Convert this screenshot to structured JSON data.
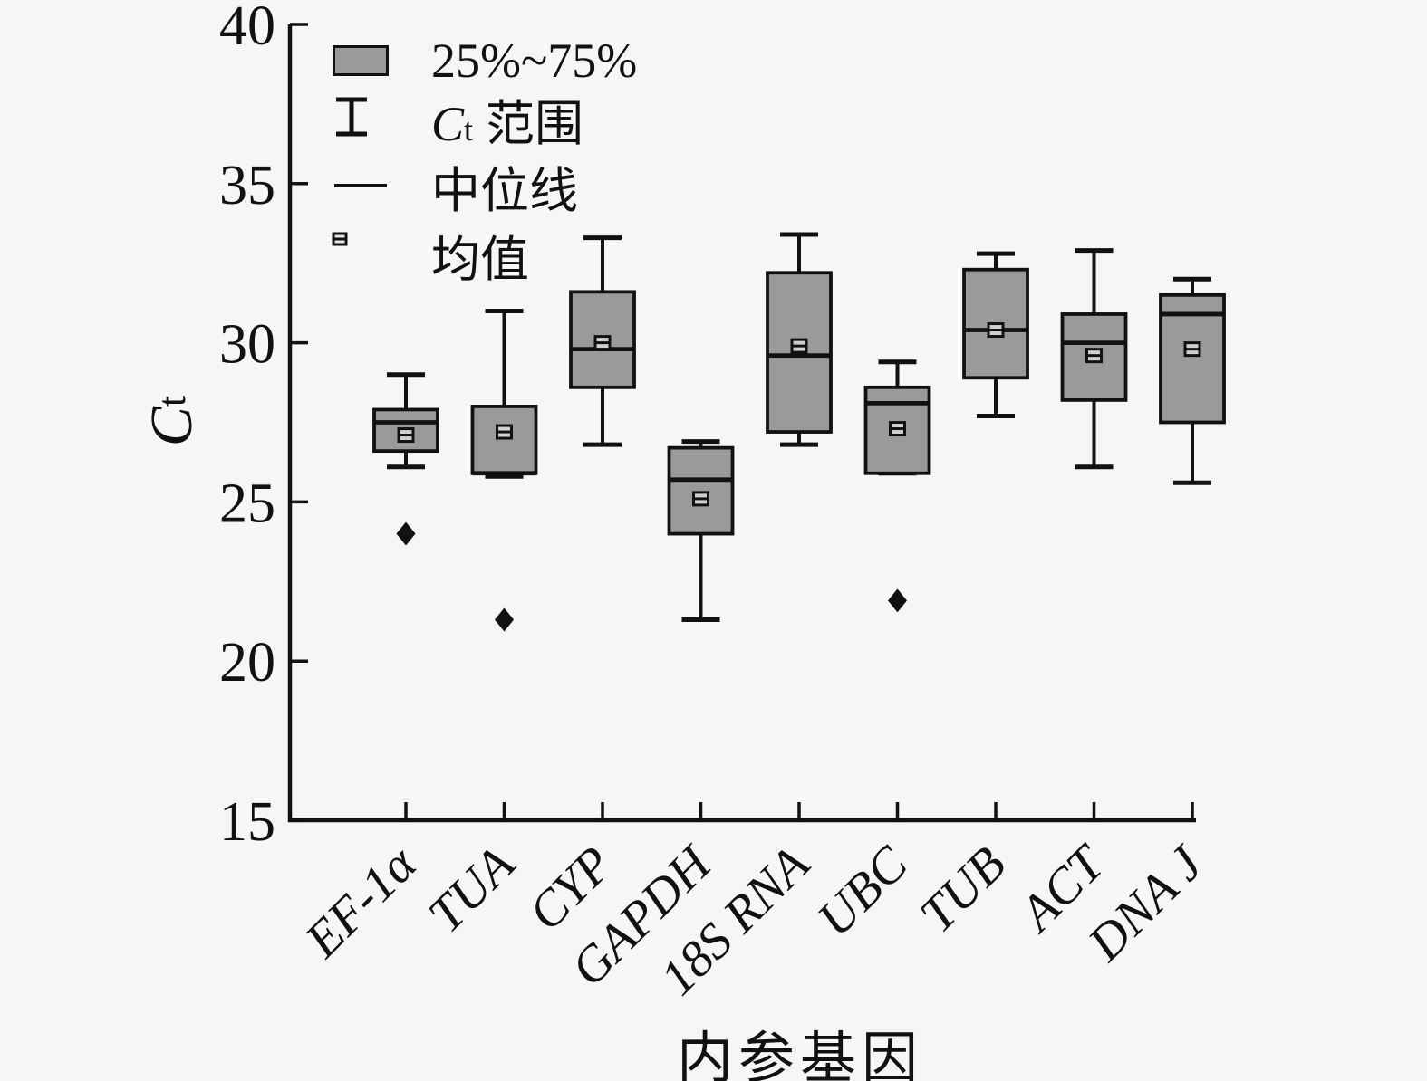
{
  "chart_data": {
    "type": "box",
    "title": "",
    "xlabel": "内参基因",
    "ylabel_main": "C",
    "ylabel_sub": "t",
    "ylim": [
      15,
      40
    ],
    "yticks": [
      40,
      35,
      30,
      25,
      20,
      15
    ],
    "grid": false,
    "legend_position": "top-left-inside",
    "categories": [
      "EF-1α",
      "TUA",
      "CYP",
      "GAPDH",
      "18S RNA",
      "UBC",
      "TUB",
      "ACT",
      "DNA J"
    ],
    "boxes": [
      {
        "gene": "EF-1α",
        "whisker_low": 26.1,
        "q1": 26.6,
        "median": 27.5,
        "q3": 27.9,
        "whisker_high": 29.0,
        "mean": 27.1,
        "outliers": [
          24.0
        ]
      },
      {
        "gene": "TUA",
        "whisker_low": 25.8,
        "q1": 25.9,
        "median": 25.9,
        "q3": 28.0,
        "whisker_high": 31.0,
        "mean": 27.2,
        "outliers": [
          21.3
        ]
      },
      {
        "gene": "CYP",
        "whisker_low": 26.8,
        "q1": 28.6,
        "median": 29.8,
        "q3": 31.6,
        "whisker_high": 33.3,
        "mean": 30.0,
        "outliers": []
      },
      {
        "gene": "GAPDH",
        "whisker_low": 21.3,
        "q1": 24.0,
        "median": 25.7,
        "q3": 26.7,
        "whisker_high": 26.9,
        "mean": 25.1,
        "outliers": []
      },
      {
        "gene": "18S RNA",
        "whisker_low": 26.8,
        "q1": 27.2,
        "median": 29.6,
        "q3": 32.2,
        "whisker_high": 33.4,
        "mean": 29.9,
        "outliers": []
      },
      {
        "gene": "UBC",
        "whisker_low": 25.9,
        "q1": 25.9,
        "median": 28.1,
        "q3": 28.6,
        "whisker_high": 29.4,
        "mean": 27.3,
        "outliers": [
          21.9
        ]
      },
      {
        "gene": "TUB",
        "whisker_low": 27.7,
        "q1": 28.9,
        "median": 30.4,
        "q3": 32.3,
        "whisker_high": 32.8,
        "mean": 30.4,
        "outliers": []
      },
      {
        "gene": "ACT",
        "whisker_low": 26.1,
        "q1": 28.2,
        "median": 30.0,
        "q3": 30.9,
        "whisker_high": 32.9,
        "mean": 29.6,
        "outliers": []
      },
      {
        "gene": "DNA J",
        "whisker_low": 25.6,
        "q1": 27.5,
        "median": 30.9,
        "q3": 31.5,
        "whisker_high": 32.0,
        "mean": 29.8,
        "outliers": []
      }
    ],
    "legend": {
      "items": [
        {
          "id": "iqr",
          "label": "25%~75%"
        },
        {
          "id": "range",
          "prefix": "C",
          "prefix_sub": "t",
          "label": "范围"
        },
        {
          "id": "median",
          "label": "中位线"
        },
        {
          "id": "mean",
          "label": "均值"
        }
      ]
    },
    "colors": {
      "box_fill": "#9a9a9a",
      "stroke": "#111111",
      "background": "#f6f6f6",
      "text": "#111111"
    }
  }
}
